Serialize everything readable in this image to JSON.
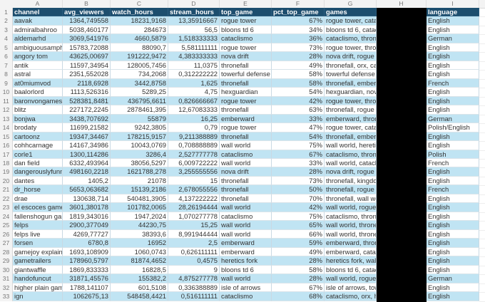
{
  "column_letters": [
    "A",
    "B",
    "C",
    "D",
    "E",
    "F",
    "G",
    "H",
    "I"
  ],
  "headers": [
    "channel",
    "avg_viewers",
    "watch_hours",
    "stream_hours",
    "top_game",
    "pct_top_game",
    "games",
    "email",
    "language"
  ],
  "email_redacted": true,
  "colors": {
    "header_bg": "#1d4e6e",
    "band_bg": "#c0e4f3",
    "redaction": "#000000"
  },
  "rows": [
    {
      "n": 2,
      "band": true,
      "cells": [
        "aavak",
        "1364,749558",
        "18231,9168",
        "13,35916667",
        "rogue tower",
        "67%",
        "rogue tower, catac",
        "",
        "English"
      ]
    },
    {
      "n": 3,
      "band": false,
      "cells": [
        "admiralbahroo",
        "5038,460177",
        "284673",
        "56,5",
        "bloons td 6",
        "34%",
        "bloons td 6, catacl",
        "",
        "English"
      ]
    },
    {
      "n": 4,
      "band": true,
      "cells": [
        "aldemarhd",
        "3069,541976",
        "4660,5879",
        "1,518333333",
        "cataclismo",
        "36%",
        "cataclismo, throne",
        "",
        "German"
      ]
    },
    {
      "n": 5,
      "band": false,
      "cells": [
        "ambiguousamphib",
        "15783,72088",
        "88090,7",
        "5,581111111",
        "rogue tower",
        "73%",
        "rogue tower, thron",
        "",
        "English"
      ]
    },
    {
      "n": 6,
      "band": true,
      "cells": [
        "angory tom",
        "43625,00697",
        "191222,9472",
        "4,383333333",
        "nova drift",
        "28%",
        "nova drift, rogue to",
        "",
        "English"
      ]
    },
    {
      "n": 7,
      "band": false,
      "cells": [
        "antik",
        "11597,34954",
        "128005,7456",
        "11,0375",
        "thronefall",
        "49%",
        "thronefall, orx, cata",
        "",
        "English"
      ]
    },
    {
      "n": 8,
      "band": false,
      "cells": [
        "astral",
        "2351,552028",
        "734,2068",
        "0,312222222",
        "towerful defense a",
        "58%",
        "towerful defense a",
        "",
        "English"
      ]
    },
    {
      "n": 9,
      "band": true,
      "cells": [
        "at0miumvod",
        "2118,6928",
        "3442,8758",
        "1,625",
        "thronefall",
        "58%",
        "thronefall, ember k",
        "",
        "French"
      ]
    },
    {
      "n": 10,
      "band": false,
      "cells": [
        "baalorlord",
        "1113,526316",
        "5289,25",
        "4,75",
        "hexguardian",
        "54%",
        "hexguardian, nova",
        "",
        "English"
      ]
    },
    {
      "n": 11,
      "band": true,
      "cells": [
        "baronvongames",
        "528381,8481",
        "436795,6611",
        "0,826666667",
        "rogue tower",
        "42%",
        "rogue tower, thron",
        "",
        "English"
      ]
    },
    {
      "n": 12,
      "band": false,
      "cells": [
        "blitz",
        "227172,2245",
        "2878461,395",
        "12,67083333",
        "thronefall",
        "63%",
        "thronefall, rogue to",
        "",
        "English"
      ]
    },
    {
      "n": 13,
      "band": true,
      "cells": [
        "bonjwa",
        "3438,707692",
        "55879",
        "16,25",
        "emberward",
        "33%",
        "emberward, throne",
        "",
        "German"
      ]
    },
    {
      "n": 14,
      "band": false,
      "cells": [
        "brodaty",
        "11699,21582",
        "9242,3805",
        "0,79",
        "rogue tower",
        "47%",
        "rogue tower, catac",
        "",
        "Polish/English"
      ]
    },
    {
      "n": 15,
      "band": true,
      "cells": [
        "cartoonz",
        "19347,34467",
        "178215,9157",
        "9,211388889",
        "thronefall",
        "54%",
        "thronefall, ember k",
        "",
        "English"
      ]
    },
    {
      "n": 16,
      "band": false,
      "cells": [
        "cohhcarnage",
        "14167,34986",
        "10043,0769",
        "0,708888889",
        "wall world",
        "75%",
        "wall world, heretics",
        "",
        "English"
      ]
    },
    {
      "n": 17,
      "band": true,
      "cells": [
        "corle1",
        "1300,114286",
        "3286,4",
        "2,527777778",
        "cataclismo",
        "67%",
        "cataclismo, throne",
        "",
        "Polish"
      ]
    },
    {
      "n": 18,
      "band": false,
      "cells": [
        "dan field",
        "6332,493964",
        "38056,5297",
        "6,009722222",
        "wall world",
        "33%",
        "wall world, catacli",
        "",
        "French"
      ]
    },
    {
      "n": 19,
      "band": true,
      "cells": [
        "dangerouslyfunny",
        "498160,2218",
        "1621788,278",
        "3,255555556",
        "nova drift",
        "28%",
        "nova drift, rogue to",
        "",
        "English"
      ]
    },
    {
      "n": 20,
      "band": false,
      "cells": [
        "dantes",
        "1405,2",
        "21078",
        "15",
        "thronefall",
        "73%",
        "thronefall, kingdom",
        "",
        "English"
      ]
    },
    {
      "n": 21,
      "band": true,
      "cells": [
        "dr_horse",
        "5653,063682",
        "15139,2186",
        "2,678055556",
        "thronefall",
        "50%",
        "thronefall, rogue to",
        "",
        "French"
      ]
    },
    {
      "n": 22,
      "band": false,
      "cells": [
        "drae",
        "130638,714",
        "540481,3905",
        "4,137222222",
        "thronefall",
        "70%",
        "thronefall, wall wo",
        "",
        "English"
      ]
    },
    {
      "n": 23,
      "band": true,
      "cells": [
        "el escoces gamer",
        "3601,380178",
        "101782,0065",
        "28,26194444",
        "wall world",
        "42%",
        "wall world, rogue to",
        "",
        "English"
      ]
    },
    {
      "n": 24,
      "band": false,
      "cells": [
        "fallenshogun gami",
        "1819,343016",
        "1947,2024",
        "1,070277778",
        "cataclismo",
        "75%",
        "cataclismo, throne",
        "",
        "English"
      ]
    },
    {
      "n": 25,
      "band": true,
      "cells": [
        "felps",
        "2900,377049",
        "44230,75",
        "15,25",
        "wall world",
        "65%",
        "wall world, thronef",
        "",
        "English"
      ]
    },
    {
      "n": 26,
      "band": false,
      "cells": [
        "felps live",
        "4269,77727",
        "38393,6",
        "8,991944444",
        "wall world",
        "66%",
        "wall world, thronef",
        "",
        "English"
      ]
    },
    {
      "n": 27,
      "band": true,
      "cells": [
        "forsen",
        "6780,8",
        "16952",
        "2,5",
        "emberward",
        "59%",
        "emberward, throne",
        "",
        "English"
      ]
    },
    {
      "n": 28,
      "band": false,
      "cells": [
        "gamejoy explained",
        "1693,108909",
        "1060,0743",
        "0,626111111",
        "emberward",
        "49%",
        "emberward, catacl",
        "",
        "English"
      ]
    },
    {
      "n": 29,
      "band": true,
      "cells": [
        "gametrailers",
        "178960,5797",
        "81874,4652",
        "0,4575",
        "heretics fork",
        "28%",
        "heretics fork, wall w",
        "",
        "English"
      ]
    },
    {
      "n": 30,
      "band": false,
      "cells": [
        "giantwaffle",
        "1869,833333",
        "16828,5",
        "9",
        "bloons td 6",
        "58%",
        "bloons td 6, catacl",
        "",
        "English"
      ]
    },
    {
      "n": 31,
      "band": true,
      "cells": [
        "handofuncut",
        "31871,45576",
        "155382,2",
        "4,875277778",
        "wall world",
        "28%",
        "wall world, rogue to",
        "",
        "German"
      ]
    },
    {
      "n": 32,
      "band": false,
      "cells": [
        "higher plain games",
        "1788,141107",
        "601,5108",
        "0,336388889",
        "isle of arrows",
        "67%",
        "isle of arrows, towe",
        "",
        "English"
      ]
    },
    {
      "n": 33,
      "band": true,
      "cells": [
        "ign",
        "1062675,13",
        "548458,4421",
        "0,516111111",
        "cataclismo",
        "68%",
        "cataclismo, orx, he",
        "",
        "English"
      ]
    }
  ]
}
